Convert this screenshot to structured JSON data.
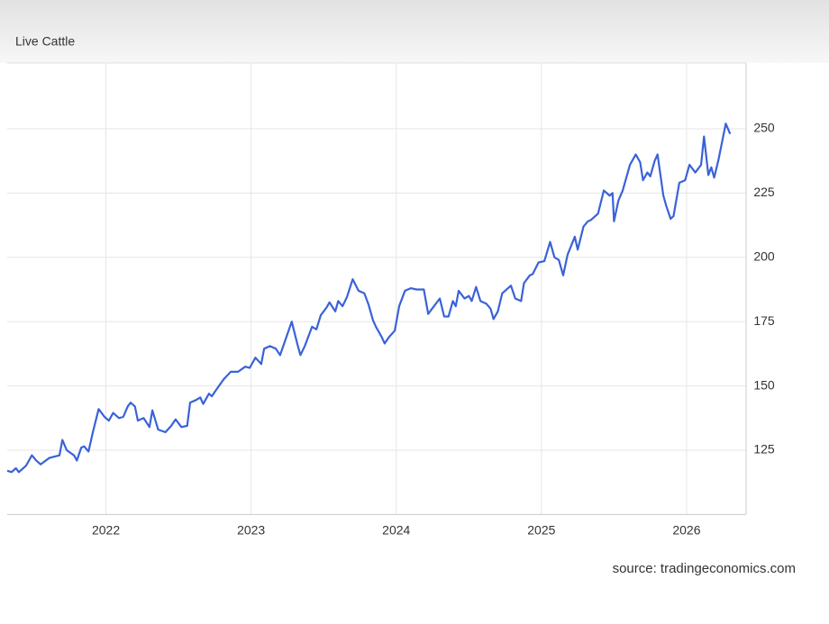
{
  "chart_data": {
    "type": "line",
    "title": "Live Cattle",
    "source": "source: tradingeconomics.com",
    "x": [
      2021.32,
      2021.35,
      2021.38,
      2021.4,
      2021.45,
      2021.49,
      2021.52,
      2021.55,
      2021.61,
      2021.68,
      2021.7,
      2021.73,
      2021.78,
      2021.8,
      2021.83,
      2021.85,
      2021.88,
      2021.91,
      2021.95,
      2021.99,
      2022.02,
      2022.05,
      2022.09,
      2022.12,
      2022.15,
      2022.17,
      2022.2,
      2022.22,
      2022.26,
      2022.3,
      2022.32,
      2022.36,
      2022.41,
      2022.45,
      2022.48,
      2022.52,
      2022.56,
      2022.58,
      2022.62,
      2022.65,
      2022.67,
      2022.71,
      2022.73,
      2022.76,
      2022.81,
      2022.86,
      2022.91,
      2022.96,
      2022.99,
      2023.03,
      2023.07,
      2023.09,
      2023.13,
      2023.17,
      2023.2,
      2023.24,
      2023.28,
      2023.32,
      2023.34,
      2023.37,
      2023.42,
      2023.45,
      2023.48,
      2023.52,
      2023.54,
      2023.58,
      2023.6,
      2023.63,
      2023.66,
      2023.7,
      2023.74,
      2023.78,
      2023.81,
      2023.84,
      2023.86,
      2023.9,
      2023.92,
      2023.95,
      2023.99,
      2024.02,
      2024.06,
      2024.1,
      2024.14,
      2024.19,
      2024.22,
      2024.26,
      2024.3,
      2024.33,
      2024.36,
      2024.39,
      2024.41,
      2024.43,
      2024.47,
      2024.5,
      2024.52,
      2024.55,
      2024.58,
      2024.62,
      2024.65,
      2024.67,
      2024.7,
      2024.73,
      2024.77,
      2024.79,
      2024.82,
      2024.86,
      2024.88,
      2024.92,
      2024.94,
      2024.98,
      2025.02,
      2025.06,
      2025.09,
      2025.12,
      2025.15,
      2025.18,
      2025.23,
      2025.25,
      2025.29,
      2025.32,
      2025.34,
      2025.39,
      2025.43,
      2025.47,
      2025.49,
      2025.5,
      2025.53,
      2025.56,
      2025.61,
      2025.65,
      2025.68,
      2025.7,
      2025.73,
      2025.75,
      2025.78,
      2025.8,
      2025.84,
      2025.86,
      2025.89,
      2025.91,
      2025.95,
      2025.99,
      2026.02,
      2026.06,
      2026.1,
      2026.12,
      2026.15,
      2026.17,
      2026.19,
      2026.22,
      2026.27,
      2026.3
    ],
    "series": [
      {
        "name": "Live Cattle",
        "color": "#3a62d8",
        "values": [
          117,
          116.5,
          118,
          116.5,
          119,
          123,
          121,
          119.5,
          122,
          123,
          129,
          125,
          123,
          121,
          126,
          126.5,
          124.5,
          132,
          141,
          138,
          136.5,
          139.5,
          137.5,
          138,
          142,
          143.5,
          142,
          136.5,
          137.5,
          134,
          140.5,
          133,
          132,
          134.5,
          137,
          134,
          134.5,
          143.5,
          144.5,
          145.5,
          143,
          147,
          146,
          148.5,
          152.5,
          155.5,
          155.5,
          157.5,
          157,
          161,
          158.5,
          164.5,
          165.5,
          164.5,
          162,
          168.5,
          175,
          166,
          162,
          165.5,
          173,
          172,
          177.5,
          180.5,
          182.5,
          179,
          183,
          181,
          184.5,
          191.5,
          187,
          186,
          181.5,
          175.5,
          173,
          169,
          166.5,
          169,
          171.5,
          181,
          187,
          188,
          187.5,
          187.5,
          178,
          181,
          184,
          177,
          177,
          183,
          181,
          187,
          184,
          185,
          183,
          188.5,
          183,
          182,
          180,
          176,
          179,
          186,
          188,
          189,
          184,
          183,
          190,
          193,
          193.5,
          198,
          198.5,
          206,
          200,
          199,
          193,
          201,
          208,
          203,
          212,
          214,
          214.5,
          217,
          226,
          224,
          225,
          214,
          222,
          226,
          236,
          240,
          237,
          230,
          233,
          231.5,
          237.5,
          240,
          224,
          220,
          215,
          216,
          229,
          230,
          236,
          233,
          236,
          247,
          232,
          235,
          231,
          238,
          252,
          248
        ]
      }
    ],
    "xlim": [
      2021.32,
      2026.41
    ],
    "xticks": [
      2022,
      2023,
      2024,
      2025,
      2026
    ],
    "ylim": [
      100,
      275
    ],
    "yticks": [
      125,
      150,
      175,
      200,
      225,
      250
    ],
    "grid": true
  }
}
